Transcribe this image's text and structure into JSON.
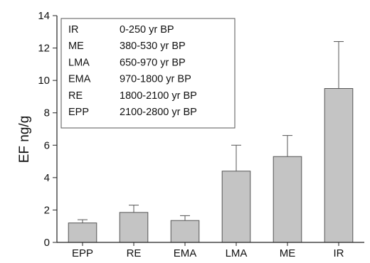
{
  "chart_data": {
    "type": "bar",
    "ylabel": "EF ng/g",
    "xlabel": "",
    "ylim": [
      0,
      14
    ],
    "yticks": [
      0,
      2,
      4,
      6,
      8,
      10,
      12,
      14
    ],
    "grid": false,
    "categories": [
      "EPP",
      "RE",
      "EMA",
      "LMA",
      "ME",
      "IR"
    ],
    "values": [
      1.2,
      1.85,
      1.35,
      4.4,
      5.3,
      9.5
    ],
    "error_upper": [
      0.2,
      0.45,
      0.3,
      1.6,
      1.3,
      2.9
    ],
    "bar_color": "#c4c4c4",
    "legend_position": "top-left",
    "legend": [
      {
        "abbr": "IR",
        "range": "0-250 yr BP"
      },
      {
        "abbr": "ME",
        "range": "380-530 yr BP"
      },
      {
        "abbr": "LMA",
        "range": "650-970 yr BP"
      },
      {
        "abbr": "EMA",
        "range": "970-1800 yr BP"
      },
      {
        "abbr": "RE",
        "range": "1800-2100 yr BP"
      },
      {
        "abbr": "EPP",
        "range": "2100-2800 yr BP"
      }
    ]
  }
}
